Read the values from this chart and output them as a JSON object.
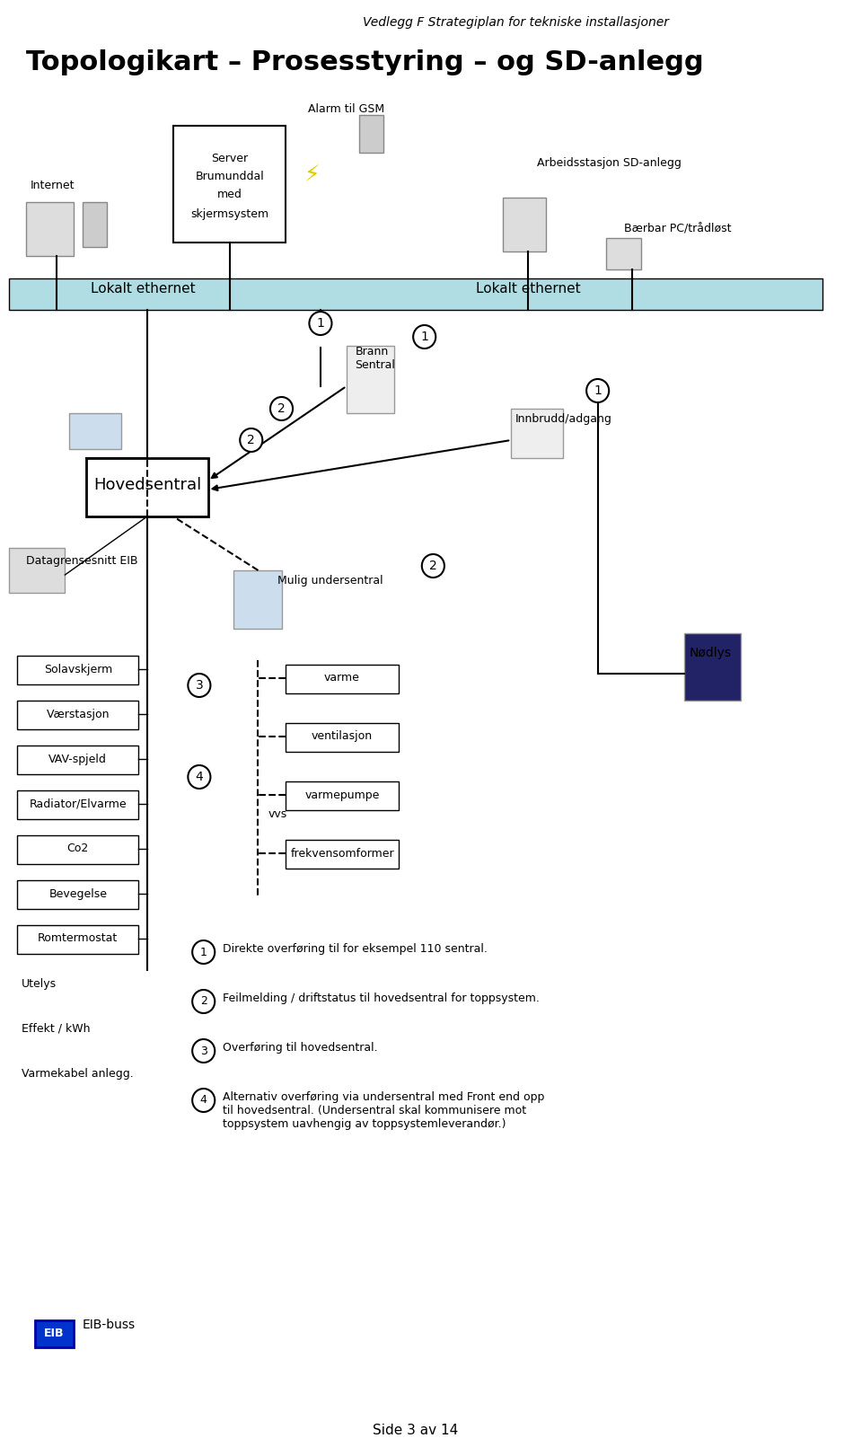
{
  "title_top": "Vedlegg F Strategiplan for tekniske installasjoner",
  "title_main": "Topologikart – Prosesstyring – og SD-anlegg",
  "bg_color": "#ffffff",
  "ethernet_bar_color": "#b0dde4",
  "ethernet_bar_border": "#000000",
  "text_color": "#000000",
  "page_footer": "Side 3 av 14",
  "annotations": [
    {
      "num": "1",
      "text": "Direkte overføring til for eksempel 110 sentral."
    },
    {
      "num": "2",
      "text": "Feilmelding / driftstatus til hovedsentral for toppsystem."
    },
    {
      "num": "3",
      "text": "Overføring til hovedsentral."
    },
    {
      "num": "4",
      "text": "Alternativ overføring via undersentral med Front end opp\ntil hovedsentral. (Undersentral skal kommunisere mot\ntoppsystem uavhengig av toppsystemleverandør.)"
    }
  ],
  "left_items": [
    "Solavskjerm",
    "Værstasjon",
    "VAV-spjeld",
    "Radiator/Elvarme",
    "Co2",
    "Bevegelse",
    "Romtermostat",
    "Utelys",
    "Effekt / kWh",
    "Varmekabel anlegg."
  ],
  "right_boxes": [
    "varme",
    "ventilasjon",
    "varmepumpe",
    "frekvensomformer"
  ],
  "right_label": "vvs"
}
